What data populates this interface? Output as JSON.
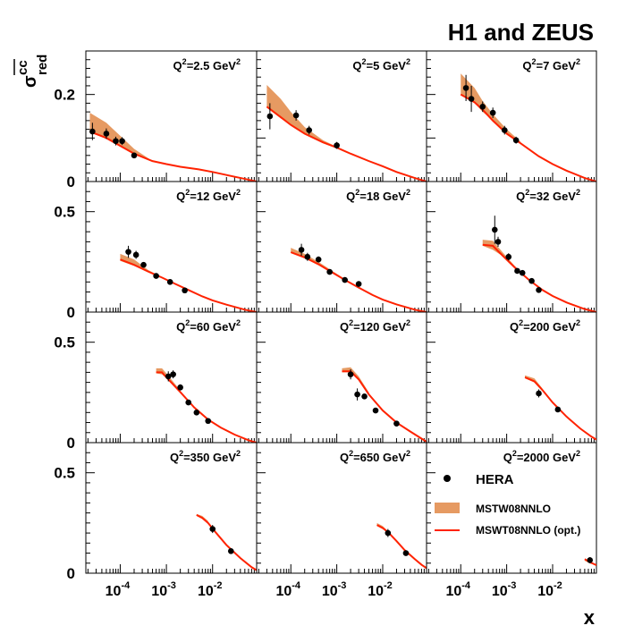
{
  "figure": {
    "title": "H1 and ZEUS",
    "xlabel": "x",
    "ylabel_main": "σ",
    "ylabel_sup": "cc",
    "ylabel_sub": "red",
    "x_tick_labels": [
      "10",
      "-4",
      "10",
      "-3",
      "10",
      "-2"
    ],
    "y_tick_labels_row1": [
      "0",
      "0.2"
    ],
    "y_tick_labels_other": [
      "0",
      "0.5"
    ],
    "legend": {
      "data_label": "HERA",
      "band_label": "MSTW08NNLO",
      "line_label": "MSWT08NNLO (opt.)"
    },
    "colors": {
      "band": "#E69A62",
      "line": "#FF2200",
      "points": "#000000"
    }
  },
  "chart_data": [
    {
      "type": "scatter",
      "panel": "Q2=2.5",
      "label_prefix": "Q",
      "label_sup": "2",
      "label_mid": "=2.5 GeV",
      "label_sup2": "2",
      "ylim": [
        0,
        0.3
      ],
      "xlog": true,
      "xlim": [
        1.8e-05,
        0.09
      ],
      "points": [
        {
          "x": 2.5e-05,
          "y": 0.115,
          "err": 0.02
        },
        {
          "x": 5e-05,
          "y": 0.11,
          "err": 0.012
        },
        {
          "x": 8e-05,
          "y": 0.093,
          "err": 0.01
        },
        {
          "x": 0.00011,
          "y": 0.093,
          "err": 0.009
        },
        {
          "x": 0.0002,
          "y": 0.06,
          "err": 0.004
        }
      ],
      "band": {
        "x": [
          2.2e-05,
          5e-05,
          0.0001,
          0.0002,
          0.0005
        ],
        "lo": [
          0.118,
          0.1,
          0.083,
          0.065,
          0.045
        ],
        "hi": [
          0.158,
          0.135,
          0.105,
          0.075,
          0.047
        ]
      },
      "line": {
        "x": [
          2.2e-05,
          5e-05,
          0.0001,
          0.0002,
          0.0005,
          0.001,
          0.002,
          0.005,
          0.01,
          0.02,
          0.05,
          0.09
        ],
        "y": [
          0.115,
          0.1,
          0.082,
          0.064,
          0.047,
          0.04,
          0.034,
          0.028,
          0.022,
          0.015,
          0.006,
          0.0
        ]
      }
    },
    {
      "type": "scatter",
      "panel": "Q2=5",
      "label_prefix": "Q",
      "label_sup": "2",
      "label_mid": "=5 GeV",
      "label_sup2": "2",
      "ylim": [
        0,
        0.3
      ],
      "xlog": true,
      "xlim": [
        1.8e-05,
        0.09
      ],
      "points": [
        {
          "x": 3.5e-05,
          "y": 0.15,
          "err": 0.03
        },
        {
          "x": 0.00013,
          "y": 0.152,
          "err": 0.012
        },
        {
          "x": 0.00025,
          "y": 0.118,
          "err": 0.01
        },
        {
          "x": 0.001,
          "y": 0.083,
          "err": 0.008
        }
      ],
      "band": {
        "x": [
          3e-05,
          6e-05,
          0.0001,
          0.0002,
          0.0005,
          0.001
        ],
        "lo": [
          0.17,
          0.145,
          0.13,
          0.11,
          0.09,
          0.078
        ],
        "hi": [
          0.222,
          0.19,
          0.16,
          0.125,
          0.095,
          0.08
        ]
      },
      "line": {
        "x": [
          3e-05,
          6e-05,
          0.0001,
          0.0002,
          0.0005,
          0.001,
          0.002,
          0.005,
          0.01,
          0.02,
          0.05,
          0.09
        ],
        "y": [
          0.172,
          0.148,
          0.13,
          0.11,
          0.09,
          0.078,
          0.064,
          0.047,
          0.035,
          0.022,
          0.008,
          0.0
        ]
      }
    },
    {
      "type": "scatter",
      "panel": "Q2=7",
      "label_prefix": "Q",
      "label_sup": "2",
      "label_mid": "=7 GeV",
      "label_sup2": "2",
      "ylim": [
        0,
        0.3
      ],
      "xlog": true,
      "xlim": [
        1.8e-05,
        0.09
      ],
      "points": [
        {
          "x": 0.00013,
          "y": 0.215,
          "err": 0.03
        },
        {
          "x": 0.00017,
          "y": 0.19,
          "err": 0.03
        },
        {
          "x": 0.0003,
          "y": 0.172,
          "err": 0.012
        },
        {
          "x": 0.0005,
          "y": 0.158,
          "err": 0.012
        },
        {
          "x": 0.0009,
          "y": 0.118,
          "err": 0.01
        },
        {
          "x": 0.0016,
          "y": 0.095,
          "err": 0.008
        }
      ],
      "band": {
        "x": [
          0.0001,
          0.0002,
          0.0003,
          0.0005,
          0.001,
          0.002
        ],
        "lo": [
          0.2,
          0.18,
          0.16,
          0.14,
          0.11,
          0.088
        ],
        "hi": [
          0.248,
          0.215,
          0.185,
          0.155,
          0.12,
          0.092
        ]
      },
      "line": {
        "x": [
          0.0001,
          0.0002,
          0.0003,
          0.0005,
          0.001,
          0.002,
          0.005,
          0.01,
          0.02,
          0.05,
          0.09
        ],
        "y": [
          0.2,
          0.182,
          0.165,
          0.14,
          0.11,
          0.088,
          0.058,
          0.04,
          0.025,
          0.008,
          0.0
        ]
      }
    },
    {
      "type": "scatter",
      "panel": "Q2=12",
      "label_prefix": "Q",
      "label_sup": "2",
      "label_mid": "=12 GeV",
      "label_sup2": "2",
      "ylim": [
        0,
        0.65
      ],
      "xlog": true,
      "xlim": [
        1.8e-05,
        0.09
      ],
      "points": [
        {
          "x": 0.00015,
          "y": 0.3,
          "err": 0.03
        },
        {
          "x": 0.00022,
          "y": 0.285,
          "err": 0.02
        },
        {
          "x": 0.00032,
          "y": 0.235,
          "err": 0.014
        },
        {
          "x": 0.0006,
          "y": 0.18,
          "err": 0.01
        },
        {
          "x": 0.0012,
          "y": 0.15,
          "err": 0.01
        },
        {
          "x": 0.0025,
          "y": 0.108,
          "err": 0.01
        }
      ],
      "band": {
        "x": [
          0.0001,
          0.0002,
          0.0004,
          0.0008
        ],
        "lo": [
          0.255,
          0.23,
          0.2,
          0.17
        ],
        "hi": [
          0.29,
          0.262,
          0.21,
          0.175
        ]
      },
      "line": {
        "x": [
          0.0001,
          0.0002,
          0.0004,
          0.0008,
          0.0015,
          0.003,
          0.006,
          0.01,
          0.02,
          0.05,
          0.09
        ],
        "y": [
          0.262,
          0.235,
          0.202,
          0.172,
          0.142,
          0.11,
          0.078,
          0.058,
          0.037,
          0.012,
          0.0
        ]
      }
    },
    {
      "type": "scatter",
      "panel": "Q2=18",
      "label_prefix": "Q",
      "label_sup": "2",
      "label_mid": "=18 GeV",
      "label_sup2": "2",
      "ylim": [
        0,
        0.65
      ],
      "xlog": true,
      "xlim": [
        1.8e-05,
        0.09
      ],
      "points": [
        {
          "x": 0.00017,
          "y": 0.31,
          "err": 0.03
        },
        {
          "x": 0.00023,
          "y": 0.275,
          "err": 0.02
        },
        {
          "x": 0.0004,
          "y": 0.262,
          "err": 0.015
        },
        {
          "x": 0.0007,
          "y": 0.2,
          "err": 0.01
        },
        {
          "x": 0.0015,
          "y": 0.16,
          "err": 0.01
        },
        {
          "x": 0.003,
          "y": 0.14,
          "err": 0.01
        }
      ],
      "band": {
        "x": [
          0.0001,
          0.0002,
          0.0004,
          0.0008,
          0.0015
        ],
        "lo": [
          0.295,
          0.27,
          0.235,
          0.195,
          0.16
        ],
        "hi": [
          0.32,
          0.29,
          0.25,
          0.205,
          0.165
        ]
      },
      "line": {
        "x": [
          0.0001,
          0.0002,
          0.0004,
          0.0008,
          0.0015,
          0.003,
          0.006,
          0.01,
          0.02,
          0.05,
          0.09
        ],
        "y": [
          0.298,
          0.272,
          0.238,
          0.197,
          0.16,
          0.122,
          0.085,
          0.062,
          0.038,
          0.012,
          0.0
        ]
      }
    },
    {
      "type": "scatter",
      "panel": "Q2=32",
      "label_prefix": "Q",
      "label_sup": "2",
      "label_mid": "=32 GeV",
      "label_sup2": "2",
      "ylim": [
        0,
        0.65
      ],
      "xlog": true,
      "xlim": [
        1.8e-05,
        0.09
      ],
      "points": [
        {
          "x": 0.00055,
          "y": 0.41,
          "err": 0.07
        },
        {
          "x": 0.00065,
          "y": 0.35,
          "err": 0.025
        },
        {
          "x": 0.0011,
          "y": 0.275,
          "err": 0.018
        },
        {
          "x": 0.0017,
          "y": 0.205,
          "err": 0.012
        },
        {
          "x": 0.0022,
          "y": 0.195,
          "err": 0.012
        },
        {
          "x": 0.0035,
          "y": 0.155,
          "err": 0.012
        },
        {
          "x": 0.005,
          "y": 0.11,
          "err": 0.01
        }
      ],
      "band": {
        "x": [
          0.0003,
          0.0005,
          0.0008,
          0.0015,
          0.003
        ],
        "lo": [
          0.33,
          0.31,
          0.28,
          0.22,
          0.16
        ],
        "hi": [
          0.36,
          0.355,
          0.3,
          0.23,
          0.165
        ]
      },
      "line": {
        "x": [
          0.0003,
          0.0005,
          0.0008,
          0.0015,
          0.003,
          0.006,
          0.01,
          0.02,
          0.05,
          0.09
        ],
        "y": [
          0.335,
          0.33,
          0.283,
          0.222,
          0.162,
          0.11,
          0.08,
          0.048,
          0.015,
          0.0
        ]
      }
    },
    {
      "type": "scatter",
      "panel": "Q2=60",
      "label_prefix": "Q",
      "label_sup": "2",
      "label_mid": "=60 GeV",
      "label_sup2": "2",
      "ylim": [
        0,
        0.65
      ],
      "xlog": true,
      "xlim": [
        1.8e-05,
        0.09
      ],
      "points": [
        {
          "x": 0.0011,
          "y": 0.33,
          "err": 0.025
        },
        {
          "x": 0.0014,
          "y": 0.34,
          "err": 0.02
        },
        {
          "x": 0.002,
          "y": 0.275,
          "err": 0.015
        },
        {
          "x": 0.003,
          "y": 0.2,
          "err": 0.012
        },
        {
          "x": 0.0045,
          "y": 0.15,
          "err": 0.01
        },
        {
          "x": 0.008,
          "y": 0.108,
          "err": 0.01
        }
      ],
      "band": {
        "x": [
          0.0006,
          0.0008,
          0.001,
          0.002
        ],
        "lo": [
          0.345,
          0.34,
          0.32,
          0.25
        ],
        "hi": [
          0.37,
          0.37,
          0.345,
          0.26
        ]
      },
      "line": {
        "x": [
          0.0006,
          0.0008,
          0.001,
          0.002,
          0.004,
          0.008,
          0.015,
          0.03,
          0.06,
          0.09
        ],
        "y": [
          0.35,
          0.35,
          0.325,
          0.252,
          0.175,
          0.115,
          0.075,
          0.04,
          0.012,
          0.0
        ]
      }
    },
    {
      "type": "scatter",
      "panel": "Q2=120",
      "label_prefix": "Q",
      "label_sup": "2",
      "label_mid": "=120 GeV",
      "label_sup2": "2",
      "ylim": [
        0,
        0.65
      ],
      "xlog": true,
      "xlim": [
        1.8e-05,
        0.09
      ],
      "points": [
        {
          "x": 0.002,
          "y": 0.34,
          "err": 0.025
        },
        {
          "x": 0.0028,
          "y": 0.24,
          "err": 0.03
        },
        {
          "x": 0.004,
          "y": 0.23,
          "err": 0.01
        },
        {
          "x": 0.007,
          "y": 0.16,
          "err": 0.01
        },
        {
          "x": 0.02,
          "y": 0.095,
          "err": 0.008
        }
      ],
      "band": {
        "x": [
          0.0013,
          0.002,
          0.003,
          0.005
        ],
        "lo": [
          0.35,
          0.35,
          0.31,
          0.24
        ],
        "hi": [
          0.37,
          0.375,
          0.33,
          0.25
        ]
      },
      "line": {
        "x": [
          0.0013,
          0.002,
          0.003,
          0.005,
          0.01,
          0.02,
          0.04,
          0.07,
          0.09
        ],
        "y": [
          0.355,
          0.355,
          0.315,
          0.24,
          0.16,
          0.1,
          0.055,
          0.02,
          0.005
        ]
      }
    },
    {
      "type": "scatter",
      "panel": "Q2=200",
      "label_prefix": "Q",
      "label_sup": "2",
      "label_mid": "=200 GeV",
      "label_sup2": "2",
      "ylim": [
        0,
        0.65
      ],
      "xlog": true,
      "xlim": [
        1.8e-05,
        0.09
      ],
      "points": [
        {
          "x": 0.005,
          "y": 0.245,
          "err": 0.02
        },
        {
          "x": 0.013,
          "y": 0.165,
          "err": 0.01
        }
      ],
      "band": {
        "x": [
          0.0025,
          0.004,
          0.006
        ],
        "lo": [
          0.32,
          0.3,
          0.26
        ],
        "hi": [
          0.335,
          0.32,
          0.27
        ]
      },
      "line": {
        "x": [
          0.0025,
          0.004,
          0.006,
          0.01,
          0.02,
          0.04,
          0.07,
          0.09
        ],
        "y": [
          0.325,
          0.305,
          0.262,
          0.2,
          0.13,
          0.07,
          0.03,
          0.015
        ]
      }
    },
    {
      "type": "scatter",
      "panel": "Q2=350",
      "label_prefix": "Q",
      "label_sup": "2",
      "label_mid": "=350 GeV",
      "label_sup2": "2",
      "ylim": [
        0,
        0.65
      ],
      "xlog": true,
      "xlim": [
        1.8e-05,
        0.09
      ],
      "points": [
        {
          "x": 0.01,
          "y": 0.22,
          "err": 0.02
        },
        {
          "x": 0.025,
          "y": 0.11,
          "err": 0.01
        }
      ],
      "band": {
        "x": [
          0.0045,
          0.006,
          0.008
        ],
        "lo": [
          0.285,
          0.27,
          0.25
        ],
        "hi": [
          0.295,
          0.285,
          0.26
        ]
      },
      "line": {
        "x": [
          0.0045,
          0.006,
          0.008,
          0.012,
          0.02,
          0.04,
          0.07,
          0.09
        ],
        "y": [
          0.29,
          0.275,
          0.25,
          0.2,
          0.14,
          0.075,
          0.03,
          0.015
        ]
      }
    },
    {
      "type": "scatter",
      "panel": "Q2=650",
      "label_prefix": "Q",
      "label_sup": "2",
      "label_mid": "=650 GeV",
      "label_sup2": "2",
      "ylim": [
        0,
        0.65
      ],
      "xlog": true,
      "xlim": [
        1.8e-05,
        0.09
      ],
      "points": [
        {
          "x": 0.013,
          "y": 0.2,
          "err": 0.02
        },
        {
          "x": 0.032,
          "y": 0.1,
          "err": 0.01
        }
      ],
      "band": {
        "x": [
          0.0075,
          0.01,
          0.013
        ],
        "lo": [
          0.235,
          0.22,
          0.2
        ],
        "hi": [
          0.25,
          0.235,
          0.21
        ]
      },
      "line": {
        "x": [
          0.0075,
          0.01,
          0.013,
          0.02,
          0.03,
          0.05,
          0.07,
          0.09
        ],
        "y": [
          0.24,
          0.225,
          0.205,
          0.16,
          0.115,
          0.07,
          0.042,
          0.025
        ]
      }
    },
    {
      "type": "scatter",
      "panel": "Q2=2000",
      "label_prefix": "Q",
      "label_sup": "2",
      "label_mid": "=2000 GeV",
      "label_sup2": "2",
      "ylim": [
        0,
        0.65
      ],
      "xlog": true,
      "xlim": [
        1.8e-05,
        0.09
      ],
      "points": [
        {
          "x": 0.065,
          "y": 0.065,
          "err": 0.015
        }
      ],
      "band": {
        "x": [
          0.05,
          0.07
        ],
        "lo": [
          0.062,
          0.045
        ],
        "hi": [
          0.068,
          0.05
        ]
      },
      "line": {
        "x": [
          0.05,
          0.065,
          0.08,
          0.09
        ],
        "y": [
          0.07,
          0.055,
          0.045,
          0.04
        ]
      }
    }
  ]
}
